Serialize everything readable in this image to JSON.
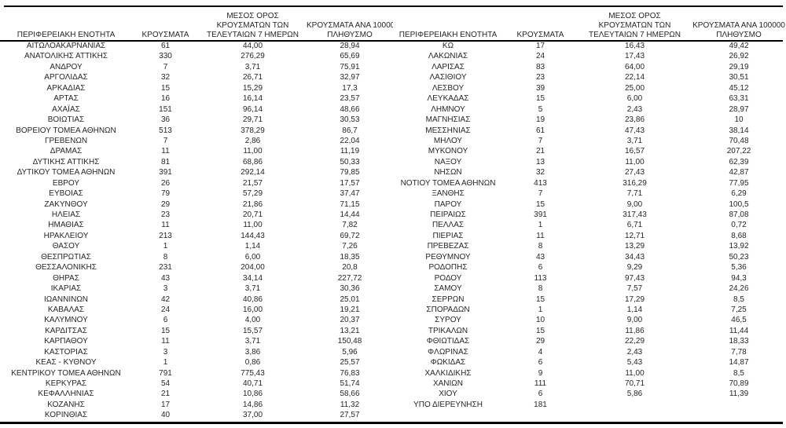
{
  "colors": {
    "background": "#ffffff",
    "text": "#262626",
    "rule": "#000000"
  },
  "table": {
    "columns": {
      "region": "ΠΕΡΙΦΕΡΕΙΑΚΗ ΕΝΟΤΗΤΑ",
      "cases": "ΚΡΟΥΣΜΑΤΑ",
      "avg7_lines": [
        "ΜΕΣΟΣ ΟΡΟΣ",
        "ΚΡΟΥΣΜΑΤΩΝ ΤΩΝ",
        "ΤΕΛΕΥΤΑΙΩΝ 7 ΗΜΕΡΩΝ"
      ],
      "per100k_lines": [
        "ΚΡΟΥΣΜΑΤΑ ΑΝΑ 100000",
        "ΠΛΗΘΥΣΜΟ"
      ]
    },
    "left_rows": [
      [
        "ΑΙΤΩΛΟΑΚΑΡΝΑΝΙΑΣ",
        "61",
        "44,00",
        "28,94"
      ],
      [
        "ΑΝΑΤΟΛΙΚΗΣ ΑΤΤΙΚΗΣ",
        "330",
        "276,29",
        "65,69"
      ],
      [
        "ΑΝΔΡΟΥ",
        "7",
        "3,71",
        "75,91"
      ],
      [
        "ΑΡΓΟΛΙΔΑΣ",
        "32",
        "26,71",
        "32,97"
      ],
      [
        "ΑΡΚΑΔΙΑΣ",
        "15",
        "15,29",
        "17,3"
      ],
      [
        "ΑΡΤΑΣ",
        "16",
        "16,14",
        "23,57"
      ],
      [
        "ΑΧΑΪΑΣ",
        "151",
        "96,14",
        "48,66"
      ],
      [
        "ΒΟΙΩΤΙΑΣ",
        "36",
        "29,71",
        "30,53"
      ],
      [
        "ΒΟΡΕΙΟΥ ΤΟΜΕΑ ΑΘΗΝΩΝ",
        "513",
        "378,29",
        "86,7"
      ],
      [
        "ΓΡΕΒΕΝΩΝ",
        "7",
        "2,86",
        "22,04"
      ],
      [
        "ΔΡΑΜΑΣ",
        "11",
        "11,00",
        "11,19"
      ],
      [
        "ΔΥΤΙΚΗΣ ΑΤΤΙΚΗΣ",
        "81",
        "68,86",
        "50,33"
      ],
      [
        "ΔΥΤΙΚΟΥ ΤΟΜΕΑ ΑΘΗΝΩΝ",
        "391",
        "292,14",
        "79,85"
      ],
      [
        "ΕΒΡΟΥ",
        "26",
        "21,57",
        "17,57"
      ],
      [
        "ΕΥΒΟΙΑΣ",
        "79",
        "57,29",
        "37,47"
      ],
      [
        "ΖΑΚΥΝΘΟΥ",
        "29",
        "21,86",
        "71,15"
      ],
      [
        "ΗΛΕΙΑΣ",
        "23",
        "20,71",
        "14,44"
      ],
      [
        "ΗΜΑΘΙΑΣ",
        "11",
        "11,00",
        "7,82"
      ],
      [
        "ΗΡΑΚΛΕΙΟΥ",
        "213",
        "144,43",
        "69,72"
      ],
      [
        "ΘΑΣΟΥ",
        "1",
        "1,14",
        "7,26"
      ],
      [
        "ΘΕΣΠΡΩΤΙΑΣ",
        "8",
        "6,00",
        "18,35"
      ],
      [
        "ΘΕΣΣΑΛΟΝΙΚΗΣ",
        "231",
        "204,00",
        "20,8"
      ],
      [
        "ΘΗΡΑΣ",
        "43",
        "34,14",
        "227,72"
      ],
      [
        "ΙΚΑΡΙΑΣ",
        "3",
        "3,71",
        "30,36"
      ],
      [
        "ΙΩΑΝΝΙΝΩΝ",
        "42",
        "40,86",
        "25,01"
      ],
      [
        "ΚΑΒΑΛΑΣ",
        "24",
        "16,00",
        "19,21"
      ],
      [
        "ΚΑΛΥΜΝΟΥ",
        "6",
        "4,00",
        "20,37"
      ],
      [
        "ΚΑΡΔΙΤΣΑΣ",
        "15",
        "15,57",
        "13,21"
      ],
      [
        "ΚΑΡΠΑΘΟΥ",
        "11",
        "3,71",
        "150,48"
      ],
      [
        "ΚΑΣΤΟΡΙΑΣ",
        "3",
        "3,86",
        "5,96"
      ],
      [
        "ΚΕΑΣ - ΚΥΘΝΟΥ",
        "1",
        "0,86",
        "25,57"
      ],
      [
        "ΚΕΝΤΡΙΚΟΥ ΤΟΜΕΑ ΑΘΗΝΩΝ",
        "791",
        "775,43",
        "76,83"
      ],
      [
        "ΚΕΡΚΥΡΑΣ",
        "54",
        "40,71",
        "51,74"
      ],
      [
        "ΚΕΦΑΛΛΗΝΙΑΣ",
        "21",
        "10,86",
        "58,66"
      ],
      [
        "ΚΟΖΑΝΗΣ",
        "17",
        "14,86",
        "11,32"
      ],
      [
        "ΚΟΡΙΝΘΙΑΣ",
        "40",
        "37,00",
        "27,57"
      ]
    ],
    "right_rows": [
      [
        "ΚΩ",
        "17",
        "16,43",
        "49,42"
      ],
      [
        "ΛΑΚΩΝΙΑΣ",
        "24",
        "17,43",
        "26,92"
      ],
      [
        "ΛΑΡΙΣΑΣ",
        "83",
        "64,00",
        "29,19"
      ],
      [
        "ΛΑΣΙΘΙΟΥ",
        "23",
        "22,14",
        "30,51"
      ],
      [
        "ΛΕΣΒΟΥ",
        "39",
        "25,00",
        "45,12"
      ],
      [
        "ΛΕΥΚΑΔΑΣ",
        "15",
        "6,00",
        "63,31"
      ],
      [
        "ΛΗΜΝΟΥ",
        "5",
        "2,43",
        "28,97"
      ],
      [
        "ΜΑΓΝΗΣΙΑΣ",
        "19",
        "23,86",
        "10"
      ],
      [
        "ΜΕΣΣΗΝΙΑΣ",
        "61",
        "47,43",
        "38,14"
      ],
      [
        "ΜΗΛΟΥ",
        "7",
        "3,71",
        "70,48"
      ],
      [
        "ΜΥΚΟΝΟΥ",
        "21",
        "16,57",
        "207,22"
      ],
      [
        "ΝΑΞΟΥ",
        "13",
        "11,00",
        "62,39"
      ],
      [
        "ΝΗΣΩΝ",
        "32",
        "27,43",
        "42,87"
      ],
      [
        "ΝΟΤΙΟΥ ΤΟΜΕΑ ΑΘΗΝΩΝ",
        "413",
        "316,29",
        "77,95"
      ],
      [
        "ΞΑΝΘΗΣ",
        "7",
        "7,71",
        "6,29"
      ],
      [
        "ΠΑΡΟΥ",
        "15",
        "9,00",
        "100,5"
      ],
      [
        "ΠΕΙΡΑΙΩΣ",
        "391",
        "317,43",
        "87,08"
      ],
      [
        "ΠΕΛΛΑΣ",
        "1",
        "6,71",
        "0,72"
      ],
      [
        "ΠΙΕΡΙΑΣ",
        "11",
        "12,71",
        "8,68"
      ],
      [
        "ΠΡΕΒΕΖΑΣ",
        "8",
        "13,29",
        "13,92"
      ],
      [
        "ΡΕΘΥΜΝΟΥ",
        "43",
        "34,43",
        "50,23"
      ],
      [
        "ΡΟΔΟΠΗΣ",
        "6",
        "9,29",
        "5,36"
      ],
      [
        "ΡΟΔΟΥ",
        "113",
        "97,43",
        "94,3"
      ],
      [
        "ΣΑΜΟΥ",
        "8",
        "7,57",
        "24,26"
      ],
      [
        "ΣΕΡΡΩΝ",
        "15",
        "17,29",
        "8,5"
      ],
      [
        "ΣΠΟΡΑΔΩΝ",
        "1",
        "1,14",
        "7,25"
      ],
      [
        "ΣΥΡΟΥ",
        "10",
        "9,00",
        "46,5"
      ],
      [
        "ΤΡΙΚΑΛΩΝ",
        "15",
        "11,86",
        "11,44"
      ],
      [
        "ΦΘΙΩΤΙΔΑΣ",
        "29",
        "22,29",
        "18,33"
      ],
      [
        "ΦΛΩΡΙΝΑΣ",
        "4",
        "2,43",
        "7,78"
      ],
      [
        "ΦΩΚΙΔΑΣ",
        "6",
        "5,43",
        "14,87"
      ],
      [
        "ΧΑΛΚΙΔΙΚΗΣ",
        "9",
        "11,00",
        "8,5"
      ],
      [
        "ΧΑΝΙΩΝ",
        "111",
        "70,71",
        "70,89"
      ],
      [
        "ΧΙΟΥ",
        "6",
        "5,86",
        "11,39"
      ],
      [
        "ΥΠΟ ΔΙΕΡΕΥΝΗΣΗ",
        "181",
        "",
        ""
      ]
    ]
  }
}
